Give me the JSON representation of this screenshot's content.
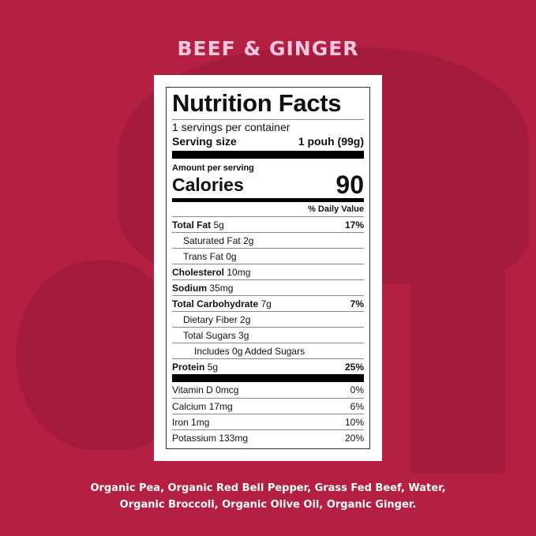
{
  "title": "BEEF & GINGER",
  "label": {
    "heading": "Nutrition Facts",
    "servings": "1 servings per container",
    "serving_size_label": "Serving size",
    "serving_size_value": "1 pouh (99g)",
    "amount_per_serving": "Amount per serving",
    "calories_label": "Calories",
    "calories_value": "90",
    "daily_value_header": "% Daily Value",
    "nutrients": [
      {
        "name": "Total Fat",
        "amount": "5g",
        "dv": "17%",
        "bold": true,
        "indent": 0
      },
      {
        "name": "Saturated Fat",
        "amount": "2g",
        "dv": "",
        "bold": false,
        "indent": 1
      },
      {
        "name": "Trans Fat",
        "amount": "0g",
        "dv": "",
        "bold": false,
        "indent": 1
      },
      {
        "name": "Cholesterol",
        "amount": "10mg",
        "dv": "",
        "bold": true,
        "indent": 0
      },
      {
        "name": "Sodium",
        "amount": "35mg",
        "dv": "",
        "bold": true,
        "indent": 0
      },
      {
        "name": "Total Carbohydrate",
        "amount": "7g",
        "dv": "7%",
        "bold": true,
        "indent": 0
      },
      {
        "name": "Dietary Fiber",
        "amount": "2g",
        "dv": "",
        "bold": false,
        "indent": 1
      },
      {
        "name": "Total Sugars",
        "amount": "3g",
        "dv": "",
        "bold": false,
        "indent": 1
      },
      {
        "name": "Includes 0g Added Sugars",
        "amount": "",
        "dv": "",
        "bold": false,
        "indent": 2
      },
      {
        "name": "Protein",
        "amount": "5g",
        "dv": "25%",
        "bold": true,
        "indent": 0
      }
    ],
    "vitamins": [
      {
        "name": "Vitamin D",
        "amount": "0mcg",
        "dv": "0%"
      },
      {
        "name": "Calcium",
        "amount": "17mg",
        "dv": "6%"
      },
      {
        "name": "Iron",
        "amount": "1mg",
        "dv": "10%"
      },
      {
        "name": "Potassium",
        "amount": "133mg",
        "dv": "20%"
      }
    ]
  },
  "ingredients": [
    "Organic Pea, Organic Red Bell Pepper, Grass Fed Beef, Water,",
    "Organic Broccoli, Organic Olive Oil, Organic Ginger."
  ]
}
